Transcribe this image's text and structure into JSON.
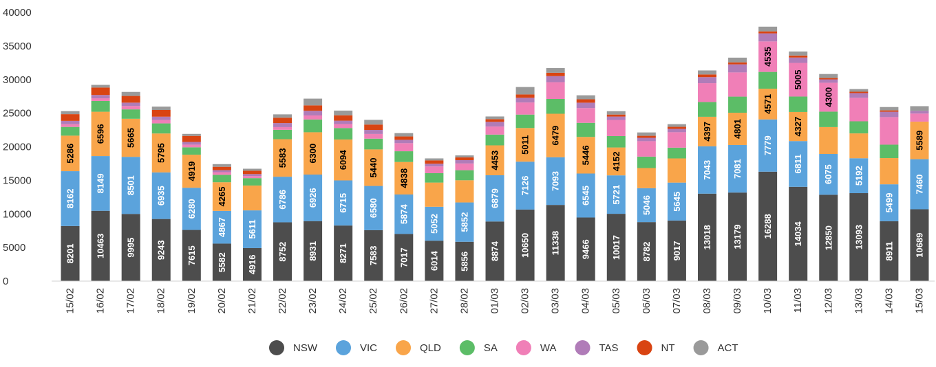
{
  "chart_data": {
    "type": "bar",
    "stacked": true,
    "title": "",
    "xlabel": "",
    "ylabel": "",
    "ylim": [
      0,
      40000
    ],
    "yticks": [
      0,
      5000,
      10000,
      15000,
      20000,
      25000,
      30000,
      35000,
      40000
    ],
    "grid": false,
    "legend_position": "bottom",
    "categories": [
      "15/02",
      "16/02",
      "17/02",
      "18/02",
      "19/02",
      "20/02",
      "21/02",
      "22/02",
      "23/02",
      "24/02",
      "25/02",
      "26/02",
      "27/02",
      "28/02",
      "01/03",
      "02/03",
      "03/03",
      "04/03",
      "05/03",
      "06/03",
      "07/03",
      "08/03",
      "09/03",
      "10/03",
      "11/03",
      "12/03",
      "13/03",
      "14/03",
      "15/03"
    ],
    "series": [
      {
        "name": "NSW",
        "color": "#4d4d4d",
        "label_color": "#ffffff",
        "values": [
          8201,
          10463,
          9995,
          9243,
          7615,
          5582,
          4916,
          8752,
          8931,
          8271,
          7583,
          7017,
          6014,
          5856,
          8874,
          10650,
          11338,
          9466,
          10017,
          8782,
          9017,
          13018,
          13179,
          16288,
          14034,
          12850,
          13093,
          8911,
          10689
        ],
        "labels": [
          8201,
          10463,
          9995,
          9243,
          7615,
          5582,
          4916,
          8752,
          8931,
          8271,
          7583,
          7017,
          6014,
          5856,
          8874,
          10650,
          11338,
          9466,
          10017,
          8782,
          9017,
          13018,
          13179,
          16288,
          14034,
          12850,
          13093,
          8911,
          10689
        ]
      },
      {
        "name": "VIC",
        "color": "#5ba3dc",
        "label_color": "#ffffff",
        "values": [
          8162,
          8149,
          8501,
          6935,
          6280,
          4867,
          5611,
          6786,
          6926,
          6715,
          6580,
          5874,
          5052,
          5852,
          6879,
          7126,
          7093,
          6545,
          5721,
          5046,
          5645,
          7043,
          7081,
          7779,
          6811,
          6075,
          5192,
          5499,
          7460
        ],
        "labels": [
          8162,
          8149,
          8501,
          6935,
          6280,
          4867,
          5611,
          6786,
          6926,
          6715,
          6580,
          5874,
          5052,
          5852,
          6879,
          7126,
          7093,
          6545,
          5721,
          5046,
          5645,
          7043,
          7081,
          7779,
          6811,
          6075,
          5192,
          5499,
          7460
        ]
      },
      {
        "name": "QLD",
        "color": "#f9a54a",
        "label_color": "#000000",
        "values": [
          5286,
          6596,
          5665,
          5795,
          4919,
          4265,
          3700,
          5583,
          6300,
          6094,
          5440,
          4838,
          3600,
          3300,
          4453,
          5011,
          6479,
          5446,
          4152,
          3000,
          3600,
          4397,
          4801,
          4571,
          4327,
          4000,
          3700,
          3900,
          5589
        ],
        "labels": [
          5286,
          6596,
          5665,
          5795,
          4919,
          4265,
          null,
          5583,
          6300,
          6094,
          5440,
          4838,
          null,
          null,
          4453,
          5011,
          6479,
          5446,
          4152,
          null,
          null,
          4397,
          4801,
          4571,
          4327,
          null,
          null,
          null,
          5589
        ]
      },
      {
        "name": "SA",
        "color": "#5cbd67",
        "label_color": "#000000",
        "values": [
          1300,
          1600,
          1400,
          1500,
          1100,
          1100,
          1100,
          1400,
          1900,
          1700,
          1600,
          1600,
          1400,
          1500,
          1600,
          2000,
          2200,
          2100,
          1700,
          1700,
          1600,
          2200,
          2400,
          2500,
          2300,
          2300,
          1800,
          2000,
          0
        ],
        "labels": []
      },
      {
        "name": "WA",
        "color": "#f07fb7",
        "label_color": "#000000",
        "values": [
          400,
          400,
          500,
          500,
          400,
          400,
          300,
          400,
          600,
          600,
          700,
          1200,
          1000,
          1000,
          1200,
          1800,
          2500,
          2200,
          2400,
          2300,
          2300,
          2800,
          3600,
          4535,
          5005,
          4300,
          3500,
          4100,
          1200
        ],
        "labels": [
          null,
          null,
          null,
          null,
          null,
          null,
          null,
          null,
          null,
          null,
          null,
          null,
          null,
          null,
          null,
          null,
          null,
          null,
          null,
          null,
          null,
          null,
          null,
          4535,
          5005,
          4300,
          null,
          null,
          null
        ]
      },
      {
        "name": "TAS",
        "color": "#b07cb8",
        "label_color": "#000000",
        "values": [
          500,
          500,
          500,
          500,
          400,
          300,
          300,
          600,
          700,
          500,
          600,
          500,
          400,
          500,
          700,
          700,
          900,
          800,
          500,
          500,
          500,
          900,
          1200,
          1200,
          800,
          500,
          700,
          800,
          400
        ],
        "labels": []
      },
      {
        "name": "NT",
        "color": "#d94412",
        "label_color": "#000000",
        "values": [
          1000,
          1100,
          1000,
          1000,
          900,
          500,
          500,
          800,
          800,
          800,
          800,
          500,
          500,
          400,
          400,
          500,
          500,
          500,
          300,
          300,
          300,
          400,
          300,
          300,
          300,
          200,
          200,
          200,
          0
        ],
        "labels": []
      },
      {
        "name": "ACT",
        "color": "#9a9a9a",
        "label_color": "#000000",
        "values": [
          450,
          400,
          600,
          500,
          300,
          400,
          300,
          500,
          1000,
          700,
          700,
          500,
          300,
          300,
          400,
          1100,
          700,
          600,
          500,
          500,
          400,
          600,
          700,
          700,
          600,
          600,
          400,
          500,
          700
        ],
        "labels": []
      }
    ]
  }
}
